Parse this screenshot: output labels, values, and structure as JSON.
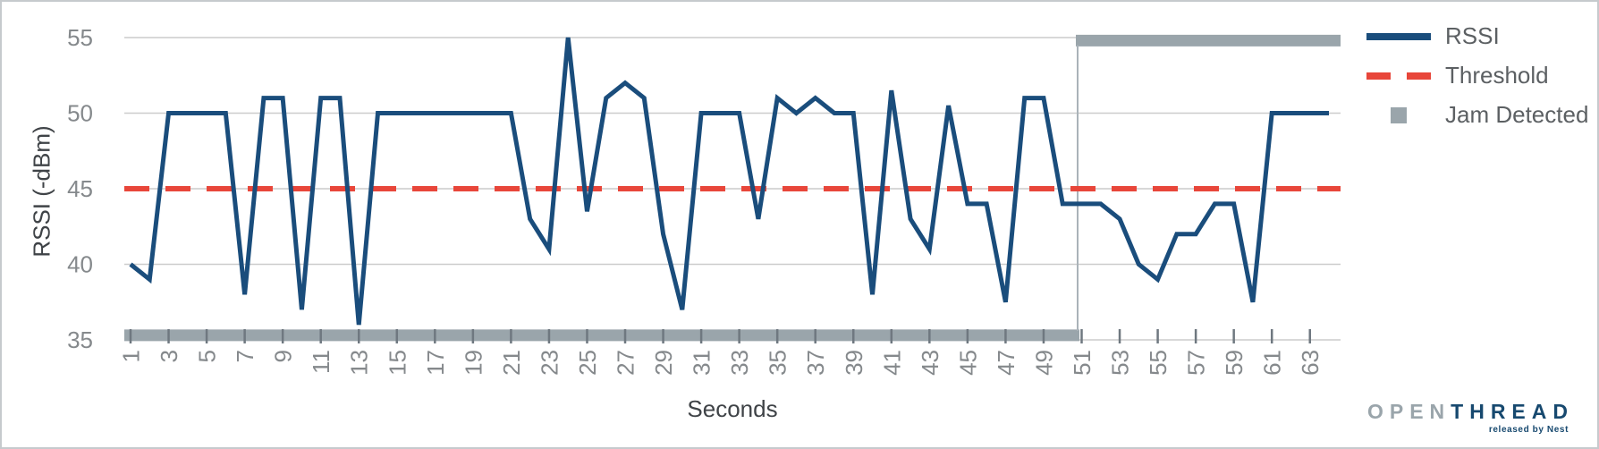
{
  "axes": {
    "y_title": "RSSI (-dBm)",
    "x_title": "Seconds",
    "y_ticks": [
      55,
      50,
      45,
      40,
      35
    ],
    "x_ticks": [
      1,
      3,
      5,
      7,
      9,
      11,
      13,
      15,
      17,
      19,
      21,
      23,
      25,
      27,
      29,
      31,
      33,
      35,
      37,
      39,
      41,
      43,
      45,
      47,
      49,
      51,
      53,
      55,
      57,
      59,
      61,
      63
    ]
  },
  "legend": {
    "items": [
      {
        "label": "RSSI",
        "swatch": "line"
      },
      {
        "label": "Threshold",
        "swatch": "dashed-line"
      },
      {
        "label": "Jam Detected",
        "swatch": "square"
      }
    ]
  },
  "logo": {
    "open": "OPEN",
    "thread": "THREAD",
    "tagline": "released by Nest"
  },
  "colors": {
    "rssi": "#1a4d7c",
    "threshold": "#e8463a",
    "jam": "#9aa5ab",
    "jam_connector": "#aab3b9",
    "grid": "#cccccc",
    "tick_mark": "#6f7880",
    "tick_text": "#85898c",
    "axis_title": "#3f4347",
    "legend_text": "#5c6063",
    "logo_gray": "#9aa5ab",
    "logo_navy": "#17496f"
  },
  "chart_data": {
    "type": "line",
    "title": "",
    "xlabel": "Seconds",
    "ylabel": "RSSI (-dBm)",
    "ylim": [
      35,
      55
    ],
    "x_range": [
      1,
      64
    ],
    "grid": "horizontal",
    "legend_position": "top-right",
    "x": [
      1,
      2,
      3,
      4,
      5,
      6,
      7,
      8,
      9,
      10,
      11,
      12,
      13,
      14,
      15,
      16,
      17,
      18,
      19,
      20,
      21,
      22,
      23,
      24,
      25,
      26,
      27,
      28,
      29,
      30,
      31,
      32,
      33,
      34,
      35,
      36,
      37,
      38,
      39,
      40,
      41,
      42,
      43,
      44,
      45,
      46,
      47,
      48,
      49,
      50,
      51,
      52,
      53,
      54,
      55,
      56,
      57,
      58,
      59,
      60,
      61,
      62,
      63,
      64
    ],
    "series": [
      {
        "name": "RSSI",
        "type": "line",
        "values": [
          40,
          39,
          50,
          50,
          50,
          50,
          38,
          51,
          51,
          37,
          51,
          51,
          36,
          50,
          50,
          50,
          50,
          50,
          50,
          50,
          50,
          43,
          41,
          55,
          43.5,
          51,
          52,
          51,
          42,
          37,
          50,
          50,
          50,
          43,
          51,
          50,
          51,
          50,
          50,
          38,
          51.5,
          43,
          41,
          50.5,
          44,
          44,
          37.5,
          51,
          51,
          44,
          44,
          44,
          43,
          40,
          39,
          42,
          42,
          44,
          44,
          37.5,
          50,
          50,
          50,
          50
        ]
      },
      {
        "name": "Threshold",
        "type": "threshold",
        "value": 45
      },
      {
        "name": "Jam Detected",
        "type": "binary",
        "segments": [
          {
            "from": 1,
            "to": 50,
            "state": 0
          },
          {
            "from": 51,
            "to": 64,
            "state": 1
          }
        ],
        "display_levels": {
          "off": 35.3,
          "on": 54.8
        }
      }
    ]
  }
}
